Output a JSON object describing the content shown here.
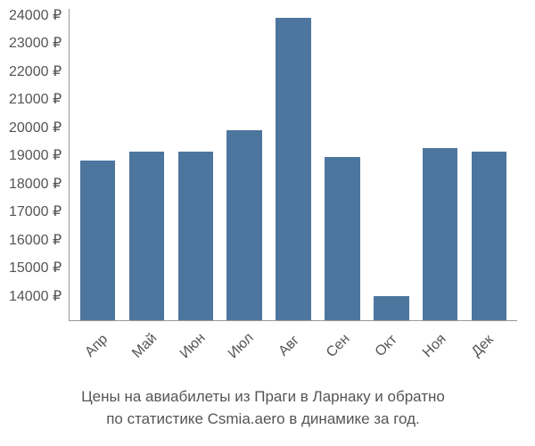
{
  "chart": {
    "type": "bar",
    "categories": [
      "Апр",
      "Май",
      "Июн",
      "Июл",
      "Авг",
      "Сен",
      "Окт",
      "Ноя",
      "Дек"
    ],
    "values": [
      18900,
      19200,
      19200,
      19900,
      23700,
      19000,
      14300,
      19300,
      19200
    ],
    "bar_color": "#4d769f",
    "bar_width": 0.72,
    "ylim_min": 13500,
    "ylim_max": 24000,
    "ytick_values": [
      24000,
      23000,
      22000,
      21000,
      20000,
      19000,
      18000,
      17000,
      16000,
      15000,
      14000
    ],
    "ytick_labels": [
      "24000 ₽",
      "23000 ₽",
      "22000 ₽",
      "21000 ₽",
      "20000 ₽",
      "19000 ₽",
      "18000 ₽",
      "17000 ₽",
      "16000 ₽",
      "15000 ₽",
      "14000 ₽"
    ],
    "axis_color": "#999999",
    "text_color": "#555555",
    "background_color": "#ffffff",
    "tick_fontsize": 16,
    "caption_fontsize": 17,
    "x_label_rotation": -45
  },
  "caption": {
    "line1": "Цены на авиабилеты из Праги в Ларнаку и обратно",
    "line2": "по статистике Csmia.aero в динамике за год."
  }
}
